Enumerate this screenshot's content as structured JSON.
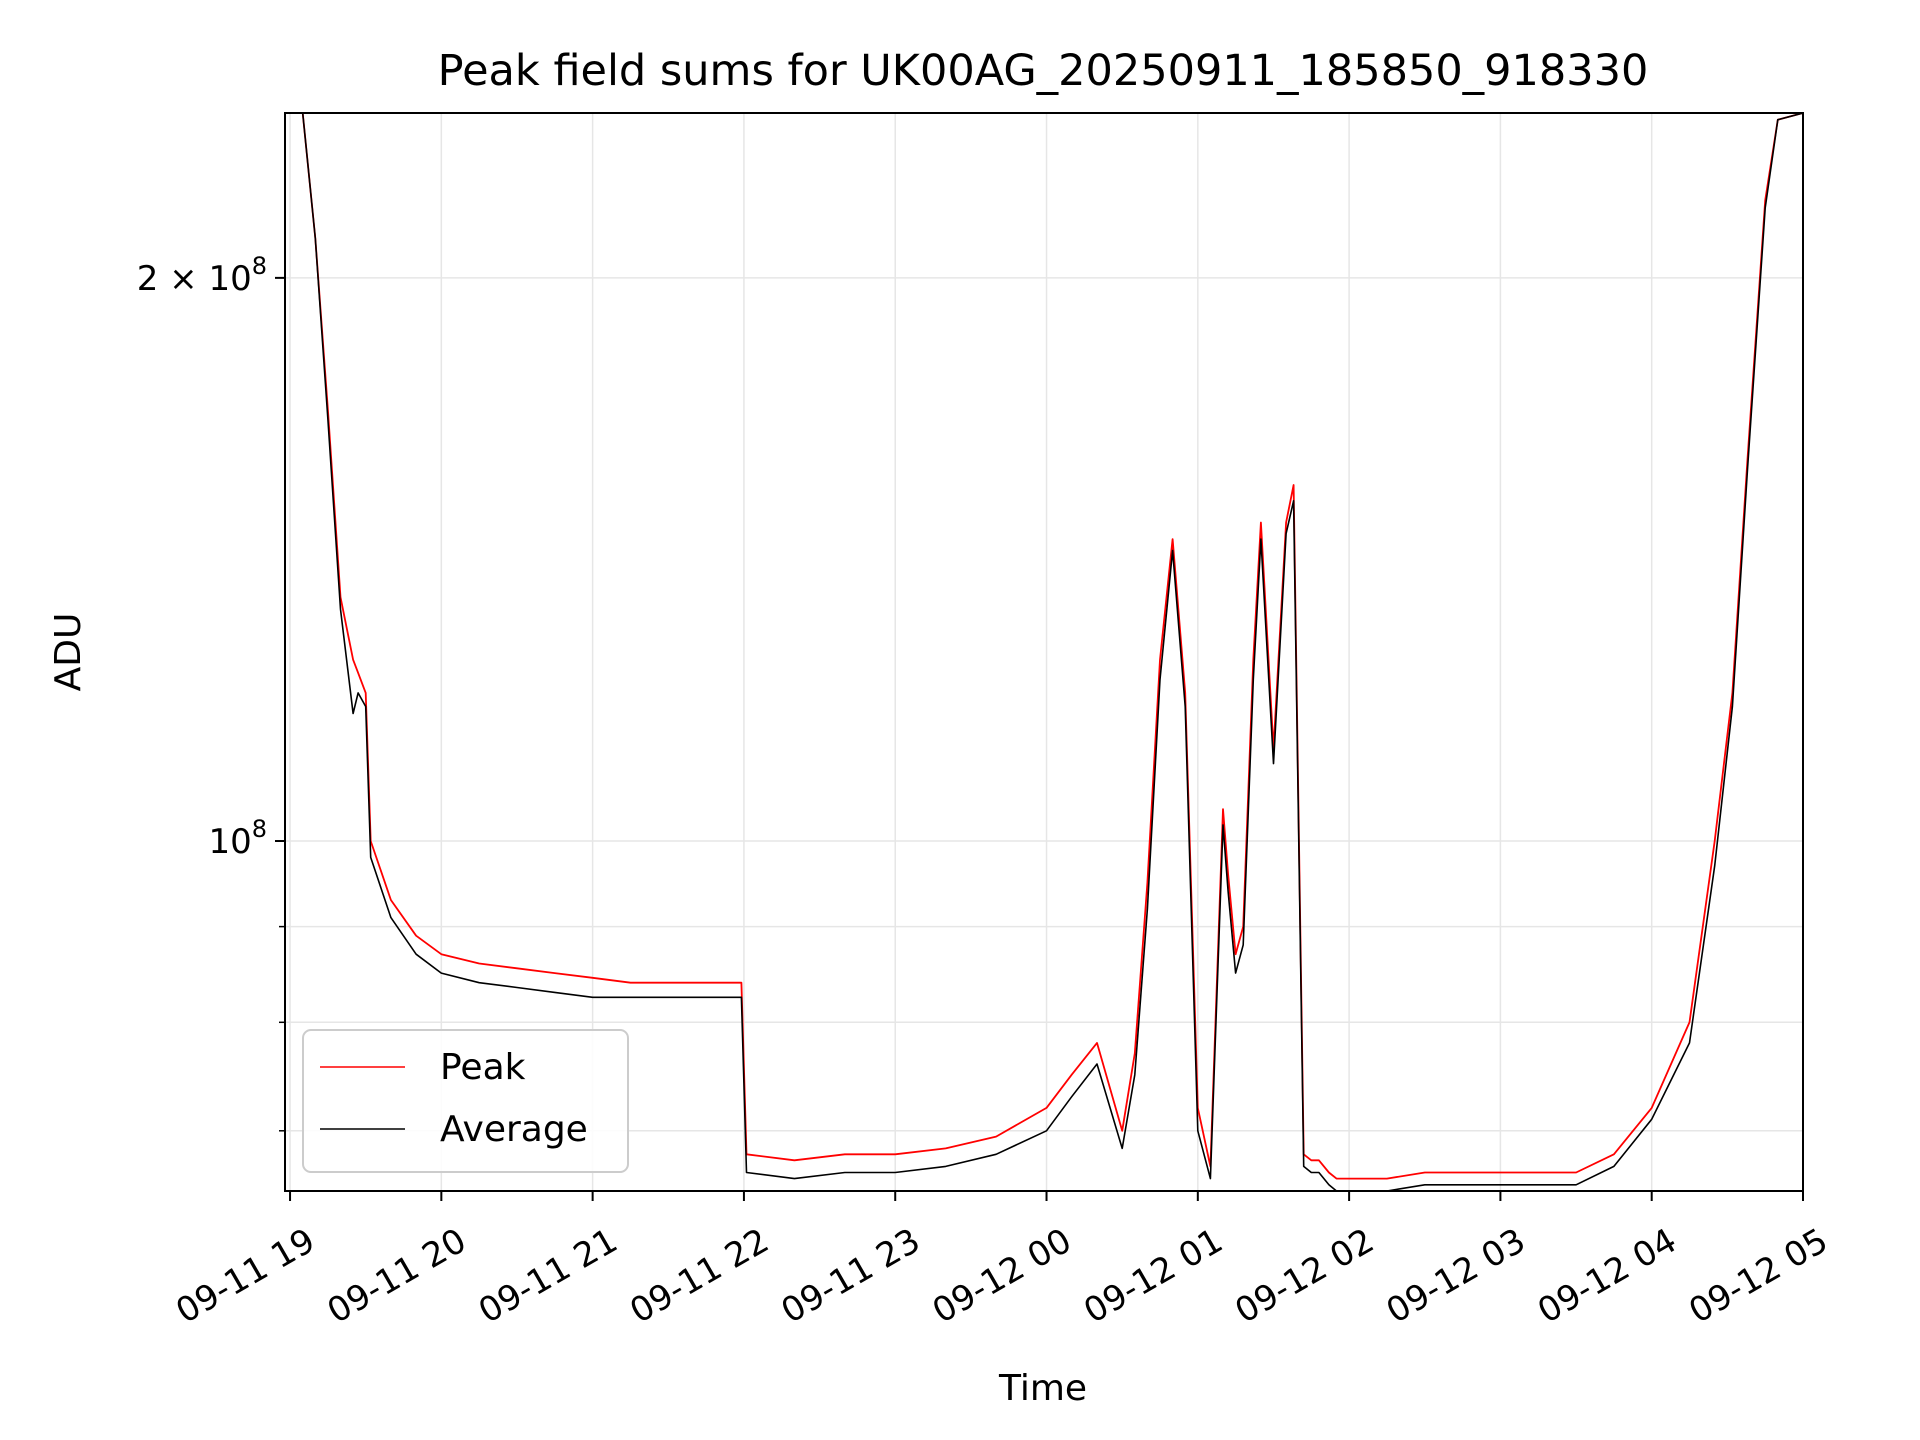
{
  "chart_data": {
    "type": "line",
    "title": "Peak field sums for UK00AG_20250911_185850_918330",
    "xlabel": "Time",
    "ylabel": "ADU",
    "yscale": "log",
    "grid": true,
    "legend_position": "lower-left",
    "xlim": [
      "2025-09-11 18:58",
      "2025-09-12 05:00"
    ],
    "ylim": [
      65000000,
      245000000
    ],
    "x_ticks": [
      "09-11 19",
      "09-11 20",
      "09-11 21",
      "09-11 22",
      "09-11 23",
      "09-12 00",
      "09-12 01",
      "09-12 02",
      "09-12 03",
      "09-12 04",
      "09-12 05"
    ],
    "y_ticks": [
      {
        "value": 100000000,
        "base": "10",
        "exponent": "8",
        "mantissa": ""
      },
      {
        "value": 200000000,
        "base": "10",
        "exponent": "8",
        "mantissa": "2 × "
      }
    ],
    "y_minor_ticks": [
      70000000,
      80000000,
      90000000
    ],
    "series": [
      {
        "name": "Peak",
        "color": "#ff0000",
        "x": [
          "2025-09-11 18:58",
          "2025-09-11 19:05",
          "2025-09-11 19:10",
          "2025-09-11 19:15",
          "2025-09-11 19:20",
          "2025-09-11 19:25",
          "2025-09-11 19:27",
          "2025-09-11 19:30",
          "2025-09-11 19:32",
          "2025-09-11 19:40",
          "2025-09-11 19:50",
          "2025-09-11 20:00",
          "2025-09-11 20:15",
          "2025-09-11 20:30",
          "2025-09-11 20:45",
          "2025-09-11 21:00",
          "2025-09-11 21:15",
          "2025-09-11 21:30",
          "2025-09-11 21:45",
          "2025-09-11 21:59",
          "2025-09-11 22:01",
          "2025-09-11 22:20",
          "2025-09-11 22:40",
          "2025-09-11 23:00",
          "2025-09-11 23:20",
          "2025-09-11 23:40",
          "2025-09-12 00:00",
          "2025-09-12 00:10",
          "2025-09-12 00:20",
          "2025-09-12 00:30",
          "2025-09-12 00:35",
          "2025-09-12 00:40",
          "2025-09-12 00:45",
          "2025-09-12 00:50",
          "2025-09-12 00:55",
          "2025-09-12 01:00",
          "2025-09-12 01:05",
          "2025-09-12 01:10",
          "2025-09-12 01:12",
          "2025-09-12 01:15",
          "2025-09-12 01:18",
          "2025-09-12 01:22",
          "2025-09-12 01:25",
          "2025-09-12 01:30",
          "2025-09-12 01:35",
          "2025-09-12 01:38",
          "2025-09-12 01:42",
          "2025-09-12 01:45",
          "2025-09-12 01:48",
          "2025-09-12 01:52",
          "2025-09-12 01:55",
          "2025-09-12 02:00",
          "2025-09-12 02:15",
          "2025-09-12 02:30",
          "2025-09-12 02:45",
          "2025-09-12 03:00",
          "2025-09-12 03:15",
          "2025-09-12 03:30",
          "2025-09-12 03:45",
          "2025-09-12 04:00",
          "2025-09-12 04:15",
          "2025-09-12 04:25",
          "2025-09-12 04:32",
          "2025-09-12 04:38",
          "2025-09-12 04:45",
          "2025-09-12 04:50",
          "2025-09-12 05:00"
        ],
        "y": [
          245000000,
          245000000,
          210000000,
          170000000,
          135000000,
          125000000,
          123000000,
          120000000,
          100000000,
          93000000,
          89000000,
          87000000,
          86000000,
          85500000,
          85000000,
          84500000,
          84000000,
          84000000,
          84000000,
          84000000,
          68000000,
          67500000,
          68000000,
          68000000,
          68500000,
          69500000,
          72000000,
          75000000,
          78000000,
          70000000,
          77000000,
          95000000,
          125000000,
          145000000,
          120000000,
          72000000,
          67000000,
          104000000,
          96000000,
          87000000,
          90000000,
          125000000,
          148000000,
          112000000,
          148000000,
          155000000,
          68000000,
          67500000,
          67500000,
          66500000,
          66000000,
          66000000,
          66000000,
          66500000,
          66500000,
          66500000,
          66500000,
          66500000,
          68000000,
          72000000,
          80000000,
          100000000,
          120000000,
          160000000,
          220000000,
          243000000,
          245000000
        ]
      },
      {
        "name": "Average",
        "color": "#000000",
        "x": [
          "2025-09-11 18:58",
          "2025-09-11 19:05",
          "2025-09-11 19:10",
          "2025-09-11 19:15",
          "2025-09-11 19:20",
          "2025-09-11 19:25",
          "2025-09-11 19:27",
          "2025-09-11 19:30",
          "2025-09-11 19:32",
          "2025-09-11 19:40",
          "2025-09-11 19:50",
          "2025-09-11 20:00",
          "2025-09-11 20:15",
          "2025-09-11 20:30",
          "2025-09-11 20:45",
          "2025-09-11 21:00",
          "2025-09-11 21:15",
          "2025-09-11 21:30",
          "2025-09-11 21:45",
          "2025-09-11 21:59",
          "2025-09-11 22:01",
          "2025-09-11 22:20",
          "2025-09-11 22:40",
          "2025-09-11 23:00",
          "2025-09-11 23:20",
          "2025-09-11 23:40",
          "2025-09-12 00:00",
          "2025-09-12 00:10",
          "2025-09-12 00:20",
          "2025-09-12 00:30",
          "2025-09-12 00:35",
          "2025-09-12 00:40",
          "2025-09-12 00:45",
          "2025-09-12 00:50",
          "2025-09-12 00:55",
          "2025-09-12 01:00",
          "2025-09-12 01:05",
          "2025-09-12 01:10",
          "2025-09-12 01:12",
          "2025-09-12 01:15",
          "2025-09-12 01:18",
          "2025-09-12 01:22",
          "2025-09-12 01:25",
          "2025-09-12 01:30",
          "2025-09-12 01:35",
          "2025-09-12 01:38",
          "2025-09-12 01:42",
          "2025-09-12 01:45",
          "2025-09-12 01:48",
          "2025-09-12 01:52",
          "2025-09-12 01:55",
          "2025-09-12 02:00",
          "2025-09-12 02:15",
          "2025-09-12 02:30",
          "2025-09-12 02:45",
          "2025-09-12 03:00",
          "2025-09-12 03:15",
          "2025-09-12 03:30",
          "2025-09-12 03:45",
          "2025-09-12 04:00",
          "2025-09-12 04:15",
          "2025-09-12 04:25",
          "2025-09-12 04:32",
          "2025-09-12 04:38",
          "2025-09-12 04:45",
          "2025-09-12 04:50",
          "2025-09-12 05:00"
        ],
        "y": [
          245000000,
          245000000,
          210000000,
          168000000,
          133000000,
          117000000,
          120000000,
          118000000,
          98000000,
          91000000,
          87000000,
          85000000,
          84000000,
          83500000,
          83000000,
          82500000,
          82500000,
          82500000,
          82500000,
          82500000,
          66500000,
          66000000,
          66500000,
          66500000,
          67000000,
          68000000,
          70000000,
          73000000,
          76000000,
          68500000,
          75000000,
          92000000,
          122000000,
          143000000,
          118000000,
          70000000,
          66000000,
          102000000,
          94000000,
          85000000,
          88000000,
          122000000,
          145000000,
          110000000,
          146000000,
          152000000,
          67000000,
          66500000,
          66500000,
          65500000,
          65000000,
          65000000,
          65000000,
          65500000,
          65500000,
          65500000,
          65500000,
          65500000,
          67000000,
          71000000,
          78000000,
          97000000,
          118000000,
          158000000,
          218000000,
          243000000,
          245000000
        ]
      }
    ]
  }
}
